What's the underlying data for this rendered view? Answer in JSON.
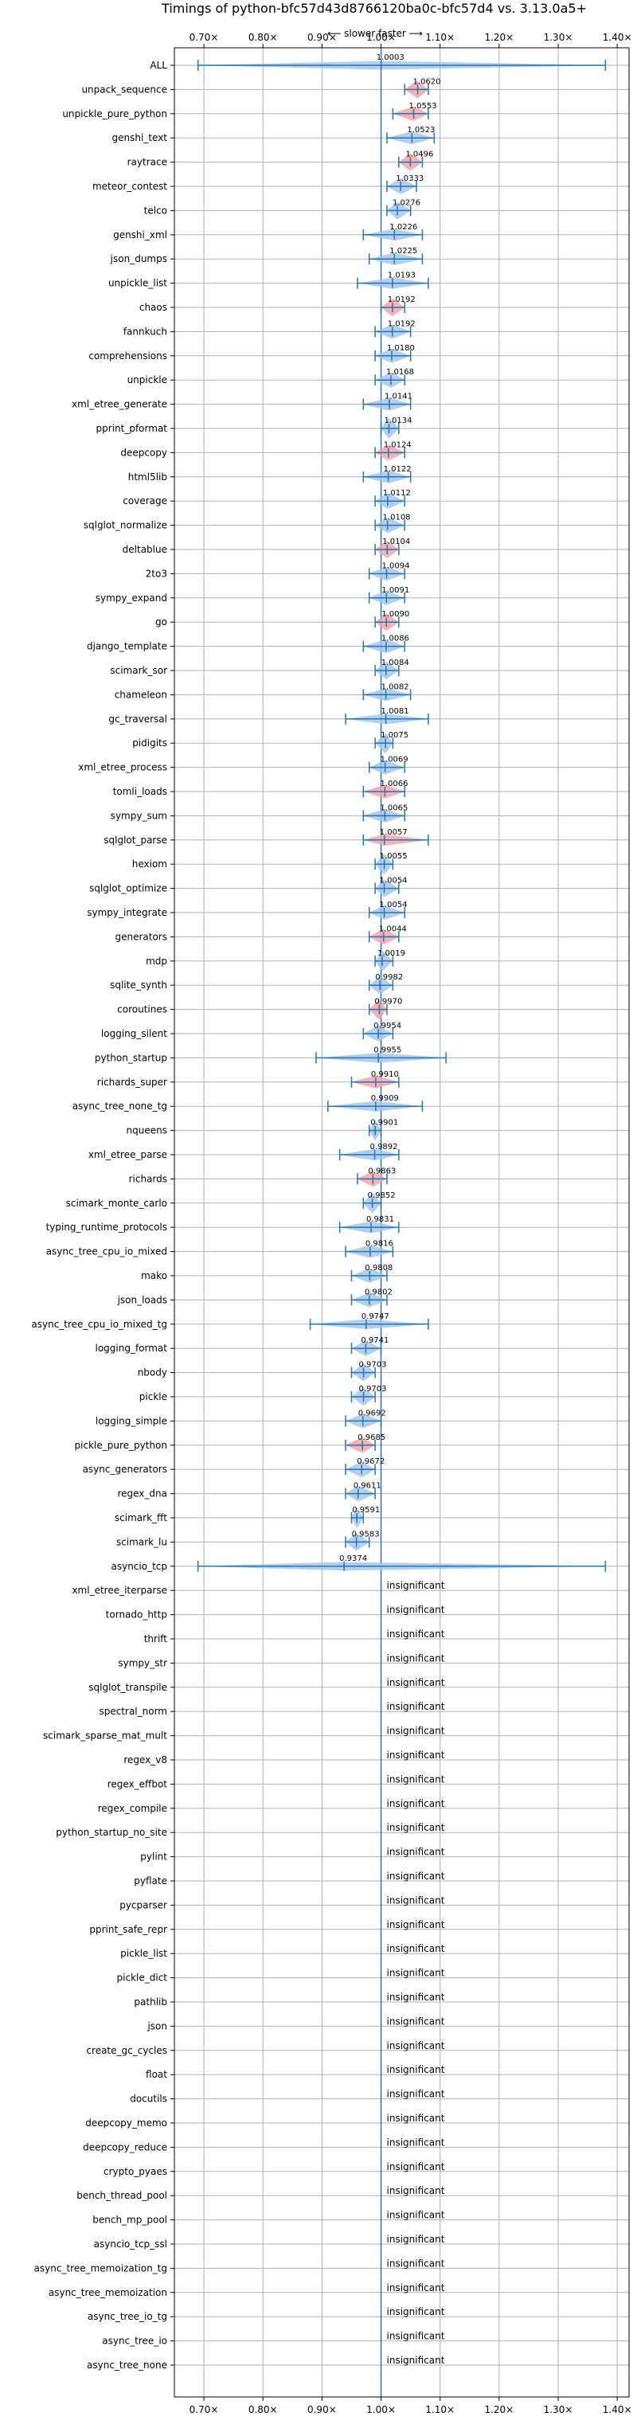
{
  "chart_data": {
    "type": "violin",
    "title": "Timings of python-bfc57d43d8766120ba0c-bfc57d4 vs. 3.13.0a5+",
    "direction_label": "⟵ slower    faster ⟶",
    "xlim": [
      0.65,
      1.42
    ],
    "x_ticks": [
      0.7,
      0.8,
      0.9,
      1.0,
      1.1,
      1.2,
      1.3,
      1.4
    ],
    "x_tick_labels": [
      "0.70×",
      "0.80×",
      "0.90×",
      "1.00×",
      "1.10×",
      "1.20×",
      "1.30×",
      "1.40×"
    ],
    "reference_line": 1.0,
    "grid": true,
    "colors": {
      "faster": "#f4a4a8",
      "slower": "#a7c7e7",
      "axis": "#1f77b4"
    },
    "significant": [
      {
        "name": "ALL",
        "value": 1.0003,
        "label": "1.0003",
        "lo": 0.69,
        "hi": 1.38,
        "color": "blue"
      },
      {
        "name": "unpack_sequence",
        "value": 1.062,
        "label": "1.0620",
        "lo": 1.04,
        "hi": 1.08,
        "color": "red"
      },
      {
        "name": "unpickle_pure_python",
        "value": 1.0553,
        "label": "1.0553",
        "lo": 1.02,
        "hi": 1.08,
        "color": "red"
      },
      {
        "name": "genshi_text",
        "value": 1.0523,
        "label": "1.0523",
        "lo": 1.01,
        "hi": 1.09,
        "color": "blue"
      },
      {
        "name": "raytrace",
        "value": 1.0496,
        "label": "1.0496",
        "lo": 1.03,
        "hi": 1.07,
        "color": "red"
      },
      {
        "name": "meteor_contest",
        "value": 1.0333,
        "label": "1.0333",
        "lo": 1.01,
        "hi": 1.06,
        "color": "blue"
      },
      {
        "name": "telco",
        "value": 1.0276,
        "label": "1.0276",
        "lo": 1.01,
        "hi": 1.05,
        "color": "blue"
      },
      {
        "name": "genshi_xml",
        "value": 1.0226,
        "label": "1.0226",
        "lo": 0.97,
        "hi": 1.07,
        "color": "blue"
      },
      {
        "name": "json_dumps",
        "value": 1.0225,
        "label": "1.0225",
        "lo": 0.98,
        "hi": 1.07,
        "color": "blue"
      },
      {
        "name": "unpickle_list",
        "value": 1.0193,
        "label": "1.0193",
        "lo": 0.96,
        "hi": 1.08,
        "color": "blue"
      },
      {
        "name": "chaos",
        "value": 1.0192,
        "label": "1.0192",
        "lo": 1.0,
        "hi": 1.04,
        "color": "red"
      },
      {
        "name": "fannkuch",
        "value": 1.0192,
        "label": "1.0192",
        "lo": 0.99,
        "hi": 1.05,
        "color": "blue"
      },
      {
        "name": "comprehensions",
        "value": 1.018,
        "label": "1.0180",
        "lo": 0.99,
        "hi": 1.05,
        "color": "blue"
      },
      {
        "name": "unpickle",
        "value": 1.0168,
        "label": "1.0168",
        "lo": 0.99,
        "hi": 1.04,
        "color": "blue"
      },
      {
        "name": "xml_etree_generate",
        "value": 1.0141,
        "label": "1.0141",
        "lo": 0.97,
        "hi": 1.05,
        "color": "blue"
      },
      {
        "name": "pprint_pformat",
        "value": 1.0134,
        "label": "1.0134",
        "lo": 1.0,
        "hi": 1.03,
        "color": "blue"
      },
      {
        "name": "deepcopy",
        "value": 1.0124,
        "label": "1.0124",
        "lo": 0.99,
        "hi": 1.04,
        "color": "red"
      },
      {
        "name": "html5lib",
        "value": 1.0122,
        "label": "1.0122",
        "lo": 0.97,
        "hi": 1.05,
        "color": "blue"
      },
      {
        "name": "coverage",
        "value": 1.0112,
        "label": "1.0112",
        "lo": 0.99,
        "hi": 1.04,
        "color": "blue"
      },
      {
        "name": "sqlglot_normalize",
        "value": 1.0108,
        "label": "1.0108",
        "lo": 0.99,
        "hi": 1.04,
        "color": "blue"
      },
      {
        "name": "deltablue",
        "value": 1.0104,
        "label": "1.0104",
        "lo": 0.99,
        "hi": 1.03,
        "color": "red"
      },
      {
        "name": "2to3",
        "value": 1.0094,
        "label": "1.0094",
        "lo": 0.98,
        "hi": 1.04,
        "color": "blue"
      },
      {
        "name": "sympy_expand",
        "value": 1.0091,
        "label": "1.0091",
        "lo": 0.98,
        "hi": 1.04,
        "color": "blue"
      },
      {
        "name": "go",
        "value": 1.009,
        "label": "1.0090",
        "lo": 0.99,
        "hi": 1.03,
        "color": "red"
      },
      {
        "name": "django_template",
        "value": 1.0086,
        "label": "1.0086",
        "lo": 0.97,
        "hi": 1.04,
        "color": "blue"
      },
      {
        "name": "scimark_sor",
        "value": 1.0084,
        "label": "1.0084",
        "lo": 0.99,
        "hi": 1.03,
        "color": "blue"
      },
      {
        "name": "chameleon",
        "value": 1.0082,
        "label": "1.0082",
        "lo": 0.97,
        "hi": 1.05,
        "color": "blue"
      },
      {
        "name": "gc_traversal",
        "value": 1.0081,
        "label": "1.0081",
        "lo": 0.94,
        "hi": 1.08,
        "color": "blue"
      },
      {
        "name": "pidigits",
        "value": 1.0075,
        "label": "1.0075",
        "lo": 0.99,
        "hi": 1.02,
        "color": "blue"
      },
      {
        "name": "xml_etree_process",
        "value": 1.0069,
        "label": "1.0069",
        "lo": 0.98,
        "hi": 1.04,
        "color": "blue"
      },
      {
        "name": "tomli_loads",
        "value": 1.0066,
        "label": "1.0066",
        "lo": 0.97,
        "hi": 1.04,
        "color": "red"
      },
      {
        "name": "sympy_sum",
        "value": 1.0065,
        "label": "1.0065",
        "lo": 0.97,
        "hi": 1.04,
        "color": "blue"
      },
      {
        "name": "sqlglot_parse",
        "value": 1.0057,
        "label": "1.0057",
        "lo": 0.97,
        "hi": 1.08,
        "color": "red"
      },
      {
        "name": "hexiom",
        "value": 1.0055,
        "label": "1.0055",
        "lo": 0.99,
        "hi": 1.02,
        "color": "blue"
      },
      {
        "name": "sqlglot_optimize",
        "value": 1.0054,
        "label": "1.0054",
        "lo": 0.99,
        "hi": 1.03,
        "color": "blue"
      },
      {
        "name": "sympy_integrate",
        "value": 1.0054,
        "label": "1.0054",
        "lo": 0.98,
        "hi": 1.04,
        "color": "blue"
      },
      {
        "name": "generators",
        "value": 1.0044,
        "label": "1.0044",
        "lo": 0.98,
        "hi": 1.03,
        "color": "red"
      },
      {
        "name": "mdp",
        "value": 1.0019,
        "label": "1.0019",
        "lo": 0.99,
        "hi": 1.02,
        "color": "blue"
      },
      {
        "name": "sqlite_synth",
        "value": 0.9982,
        "label": "0.9982",
        "lo": 0.98,
        "hi": 1.02,
        "color": "blue"
      },
      {
        "name": "coroutines",
        "value": 0.997,
        "label": "0.9970",
        "lo": 0.98,
        "hi": 1.01,
        "color": "red"
      },
      {
        "name": "logging_silent",
        "value": 0.9954,
        "label": "0.9954",
        "lo": 0.97,
        "hi": 1.02,
        "color": "blue"
      },
      {
        "name": "python_startup",
        "value": 0.9955,
        "label": "0.9955",
        "lo": 0.89,
        "hi": 1.11,
        "color": "blue"
      },
      {
        "name": "richards_super",
        "value": 0.991,
        "label": "0.9910",
        "lo": 0.95,
        "hi": 1.03,
        "color": "red"
      },
      {
        "name": "async_tree_none_tg",
        "value": 0.9909,
        "label": "0.9909",
        "lo": 0.91,
        "hi": 1.07,
        "color": "blue"
      },
      {
        "name": "nqueens",
        "value": 0.9901,
        "label": "0.9901",
        "lo": 0.98,
        "hi": 1.0,
        "color": "blue"
      },
      {
        "name": "xml_etree_parse",
        "value": 0.9892,
        "label": "0.9892",
        "lo": 0.93,
        "hi": 1.03,
        "color": "blue"
      },
      {
        "name": "richards",
        "value": 0.9863,
        "label": "0.9863",
        "lo": 0.96,
        "hi": 1.01,
        "color": "red"
      },
      {
        "name": "scimark_monte_carlo",
        "value": 0.9852,
        "label": "0.9852",
        "lo": 0.97,
        "hi": 1.0,
        "color": "blue"
      },
      {
        "name": "typing_runtime_protocols",
        "value": 0.9831,
        "label": "0.9831",
        "lo": 0.93,
        "hi": 1.03,
        "color": "blue"
      },
      {
        "name": "async_tree_cpu_io_mixed",
        "value": 0.9816,
        "label": "0.9816",
        "lo": 0.94,
        "hi": 1.02,
        "color": "blue"
      },
      {
        "name": "mako",
        "value": 0.9808,
        "label": "0.9808",
        "lo": 0.95,
        "hi": 1.01,
        "color": "blue"
      },
      {
        "name": "json_loads",
        "value": 0.9802,
        "label": "0.9802",
        "lo": 0.95,
        "hi": 1.01,
        "color": "blue"
      },
      {
        "name": "async_tree_cpu_io_mixed_tg",
        "value": 0.9747,
        "label": "0.9747",
        "lo": 0.88,
        "hi": 1.08,
        "color": "blue"
      },
      {
        "name": "logging_format",
        "value": 0.9741,
        "label": "0.9741",
        "lo": 0.95,
        "hi": 1.0,
        "color": "blue"
      },
      {
        "name": "nbody",
        "value": 0.9703,
        "label": "0.9703",
        "lo": 0.95,
        "hi": 0.99,
        "color": "blue"
      },
      {
        "name": "pickle",
        "value": 0.9703,
        "label": "0.9703",
        "lo": 0.95,
        "hi": 0.99,
        "color": "blue"
      },
      {
        "name": "logging_simple",
        "value": 0.9692,
        "label": "0.9692",
        "lo": 0.94,
        "hi": 1.0,
        "color": "blue"
      },
      {
        "name": "pickle_pure_python",
        "value": 0.9685,
        "label": "0.9685",
        "lo": 0.94,
        "hi": 0.99,
        "color": "red"
      },
      {
        "name": "async_generators",
        "value": 0.9672,
        "label": "0.9672",
        "lo": 0.94,
        "hi": 0.99,
        "color": "blue"
      },
      {
        "name": "regex_dna",
        "value": 0.9611,
        "label": "0.9611",
        "lo": 0.94,
        "hi": 0.99,
        "color": "blue"
      },
      {
        "name": "scimark_fft",
        "value": 0.9591,
        "label": "0.9591",
        "lo": 0.95,
        "hi": 0.97,
        "color": "blue"
      },
      {
        "name": "scimark_lu",
        "value": 0.9583,
        "label": "0.9583",
        "lo": 0.94,
        "hi": 0.98,
        "color": "blue"
      },
      {
        "name": "asyncio_tcp",
        "value": 0.9374,
        "label": "0.9374",
        "lo": 0.69,
        "hi": 1.38,
        "color": "blue"
      }
    ],
    "insignificant_label": "insignificant",
    "insignificant": [
      "xml_etree_iterparse",
      "tornado_http",
      "thrift",
      "sympy_str",
      "sqlglot_transpile",
      "spectral_norm",
      "scimark_sparse_mat_mult",
      "regex_v8",
      "regex_effbot",
      "regex_compile",
      "python_startup_no_site",
      "pylint",
      "pyflate",
      "pycparser",
      "pprint_safe_repr",
      "pickle_list",
      "pickle_dict",
      "pathlib",
      "json",
      "create_gc_cycles",
      "float",
      "docutils",
      "deepcopy_memo",
      "deepcopy_reduce",
      "crypto_pyaes",
      "bench_thread_pool",
      "bench_mp_pool",
      "asyncio_tcp_ssl",
      "async_tree_memoization_tg",
      "async_tree_memoization",
      "async_tree_io_tg",
      "async_tree_io",
      "async_tree_none"
    ]
  }
}
